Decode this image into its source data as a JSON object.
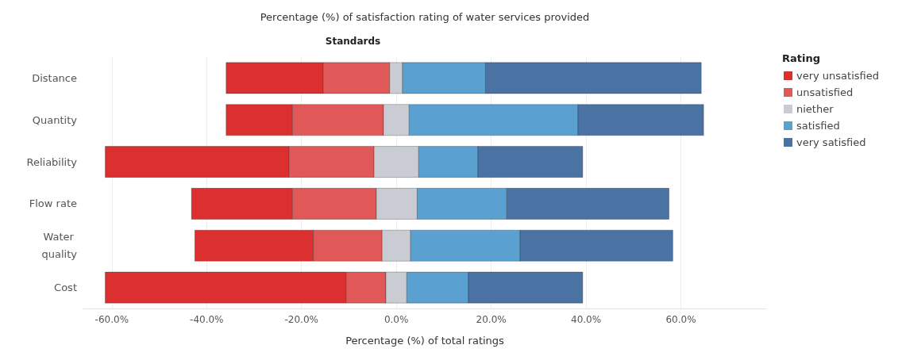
{
  "chart_data": {
    "type": "bar",
    "orientation": "horizontal",
    "title": "Percentage (%) of satisfaction rating of water services provided",
    "xlabel": "Percentage (%) of total ratings",
    "ylabel": "Standards",
    "legend_title": "Rating",
    "categories": [
      "Distance",
      "Quantity",
      "Reliability",
      "Flow rate",
      "Water quality",
      "Cost"
    ],
    "series": [
      {
        "name": "very unsatisfied",
        "color": "#dc3030",
        "base": [
          -35.9,
          -35.9,
          -61.4,
          -43.2,
          -42.5,
          -61.4
        ],
        "values": [
          20.5,
          14.0,
          38.8,
          21.3,
          25.0,
          50.8
        ]
      },
      {
        "name": "unsatisfied",
        "color": "#e05858",
        "base": [
          -15.4,
          -21.9,
          -22.6,
          -21.9,
          -17.5,
          -10.6
        ],
        "values": [
          14.0,
          19.2,
          17.9,
          17.7,
          14.5,
          8.4
        ]
      },
      {
        "name": "niether",
        "color": "#c9cdd3",
        "base": [
          -1.4,
          -2.7,
          -4.7,
          -4.2,
          -3.0,
          -2.2
        ],
        "values": [
          2.7,
          5.4,
          9.4,
          8.6,
          6.0,
          4.4
        ]
      },
      {
        "name": "satisfied",
        "color": "#5aa0d0",
        "base": [
          1.3,
          2.7,
          4.7,
          4.4,
          3.0,
          2.2
        ],
        "values": [
          17.5,
          35.6,
          12.5,
          18.9,
          23.1,
          13.0
        ]
      },
      {
        "name": "very satisfied",
        "color": "#4a72a3",
        "base": [
          18.8,
          38.3,
          17.2,
          23.3,
          26.1,
          15.2
        ],
        "values": [
          45.5,
          26.5,
          22.1,
          34.2,
          32.2,
          24.1
        ]
      }
    ],
    "xlim": [
      -66,
      78
    ],
    "xticks": [
      {
        "value": -60,
        "label": "-60.0%"
      },
      {
        "value": -40,
        "label": "-40.0%"
      },
      {
        "value": -20,
        "label": "-20.0%"
      },
      {
        "value": 0,
        "label": "0.0%"
      },
      {
        "value": 20,
        "label": "20.0%"
      },
      {
        "value": 40,
        "label": "40.0%"
      },
      {
        "value": 60,
        "label": "60.0%"
      }
    ],
    "grid": "x",
    "legend": "right"
  }
}
